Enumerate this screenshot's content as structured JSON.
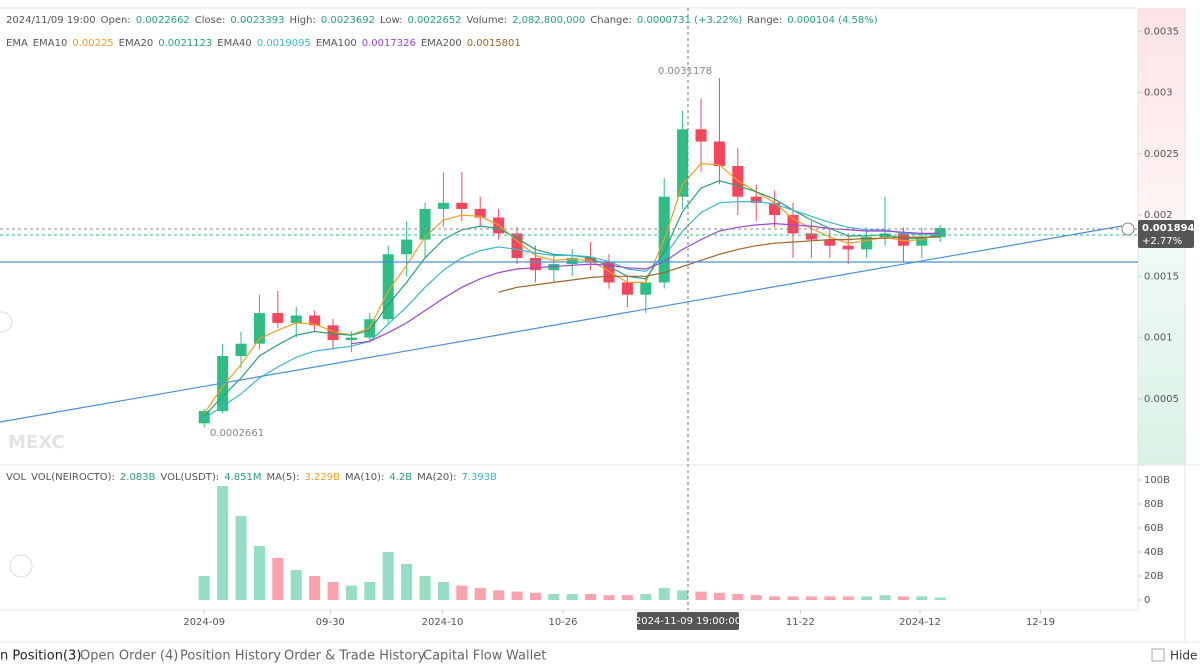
{
  "header": {
    "items": [
      {
        "label": "2024/11/09 19:00",
        "value": null
      },
      {
        "label": "Open:",
        "value": "0.0022662"
      },
      {
        "label": "Close:",
        "value": "0.0023393"
      },
      {
        "label": "High:",
        "value": "0.0023692"
      },
      {
        "label": "Low:",
        "value": "0.0022652"
      },
      {
        "label": "Volume:",
        "value": "2,082,800,000"
      },
      {
        "label": "Change:",
        "value": "0.0000731 (+3.22%)"
      },
      {
        "label": "Range:",
        "value": "0.000104 (4.58%)"
      }
    ],
    "ema_title": "EMA"
  },
  "volume_legend": {
    "title": "VOL",
    "items": [
      {
        "label": "VOL(NEIROCTO):",
        "value": "2.083B",
        "color": "#26a17b"
      },
      {
        "label": "VOL(USDT):",
        "value": "4.851M",
        "color": "#26a17b"
      },
      {
        "label": "MA(5):",
        "value": "3.229B",
        "color": "#f0a020"
      },
      {
        "label": "MA(10):",
        "value": "4.2B",
        "color": "#26a17b"
      },
      {
        "label": "MA(20):",
        "value": "7.393B",
        "color": "#3bb8d0"
      }
    ]
  },
  "chart_data": {
    "type": "candlestick",
    "up_color": "#2ebd85",
    "down_color": "#f6465d",
    "xlim": [
      -11.1,
      50.75
    ],
    "xticks": [
      {
        "value": 0,
        "label": "2024-09"
      },
      {
        "value": 6.85,
        "label": "09-30"
      },
      {
        "value": 12.95,
        "label": "2024-10"
      },
      {
        "value": 19.5,
        "label": "10-26"
      },
      {
        "value": 32.4,
        "label": "11-22"
      },
      {
        "value": 38.9,
        "label": "2024-12"
      },
      {
        "value": 45.45,
        "label": "12-19"
      }
    ],
    "ylim": [
      -4e-05,
      0.00369
    ],
    "yticks": [
      0.0005,
      0.001,
      0.0015,
      0.002,
      0.0025,
      0.003,
      0.0035
    ],
    "candles": {
      "open": [
        0.0003,
        0.0004,
        0.00085,
        0.00095,
        0.0012,
        0.00112,
        0.00118,
        0.0011,
        0.00098,
        0.001,
        0.00115,
        0.00168,
        0.0018,
        0.00205,
        0.0021,
        0.00205,
        0.00198,
        0.00185,
        0.00165,
        0.00155,
        0.0016,
        0.00165,
        0.00162,
        0.00145,
        0.00135,
        0.00145,
        0.00215,
        0.0027,
        0.0026,
        0.0024,
        0.00215,
        0.0021,
        0.002,
        0.00185,
        0.0018,
        0.00175,
        0.00172,
        0.00182,
        0.00185,
        0.00175,
        0.00182
      ],
      "high": [
        0.00042,
        0.00095,
        0.00105,
        0.00135,
        0.00138,
        0.00125,
        0.00122,
        0.00115,
        0.00105,
        0.0012,
        0.00175,
        0.00195,
        0.0021,
        0.00235,
        0.00235,
        0.00215,
        0.00205,
        0.0019,
        0.00175,
        0.00168,
        0.00172,
        0.00178,
        0.00168,
        0.0015,
        0.0015,
        0.0023,
        0.00285,
        0.00295,
        0.0031178,
        0.00255,
        0.00225,
        0.0022,
        0.0021,
        0.00195,
        0.0019,
        0.00185,
        0.0019,
        0.00215,
        0.0019,
        0.0019,
        0.00192
      ],
      "low": [
        0.0002661,
        0.00038,
        0.00075,
        0.0009,
        0.00108,
        0.001,
        0.00105,
        0.0009,
        0.00088,
        0.00096,
        0.00112,
        0.0015,
        0.00165,
        0.0019,
        0.00195,
        0.0019,
        0.0018,
        0.0016,
        0.00145,
        0.00145,
        0.0015,
        0.00155,
        0.0014,
        0.00125,
        0.0012,
        0.0014,
        0.00205,
        0.00235,
        0.00225,
        0.002,
        0.00195,
        0.0019,
        0.00165,
        0.00165,
        0.00165,
        0.0016,
        0.00165,
        0.00175,
        0.00162,
        0.00165,
        0.00178
      ],
      "close": [
        0.0004,
        0.00085,
        0.00095,
        0.0012,
        0.00112,
        0.00118,
        0.0011,
        0.00098,
        0.001,
        0.00115,
        0.00168,
        0.0018,
        0.00205,
        0.0021,
        0.00205,
        0.00198,
        0.00185,
        0.00165,
        0.00155,
        0.0016,
        0.00165,
        0.00162,
        0.00145,
        0.00135,
        0.00145,
        0.00215,
        0.0027,
        0.0026,
        0.0024,
        0.00215,
        0.0021,
        0.002,
        0.00185,
        0.0018,
        0.00175,
        0.00172,
        0.00182,
        0.00185,
        0.00175,
        0.00182,
        0.0018943
      ]
    },
    "series": [
      {
        "name": "EMA10",
        "value_label": "0.00225",
        "color": "#f0a020",
        "values": [
          0.00038,
          0.0006,
          0.00078,
          0.00099,
          0.00106,
          0.00112,
          0.00111,
          0.00105,
          0.00102,
          0.00108,
          0.00138,
          0.00159,
          0.00182,
          0.00196,
          0.002,
          0.00199,
          0.00192,
          0.00179,
          0.00167,
          0.00163,
          0.00164,
          0.00163,
          0.00154,
          0.00145,
          0.00145,
          0.0018,
          0.00225,
          0.00242,
          0.00241,
          0.00228,
          0.00219,
          0.0021,
          0.00197,
          0.00189,
          0.00182,
          0.00177,
          0.00179,
          0.00182,
          0.00179,
          0.0018,
          0.00185
        ]
      },
      {
        "name": "EMA20",
        "value_label": "0.0021123",
        "color": "#26a17b",
        "values": [
          0.00036,
          0.00052,
          0.00067,
          0.00085,
          0.00094,
          0.00102,
          0.00105,
          0.00103,
          0.00102,
          0.00106,
          0.00127,
          0.00145,
          0.00165,
          0.0018,
          0.00188,
          0.00191,
          0.00189,
          0.00181,
          0.00172,
          0.00168,
          0.00167,
          0.00165,
          0.00158,
          0.0015,
          0.00148,
          0.0017,
          0.00203,
          0.00222,
          0.00228,
          0.00224,
          0.00219,
          0.00213,
          0.00204,
          0.00196,
          0.00189,
          0.00183,
          0.00183,
          0.00184,
          0.00181,
          0.00181,
          0.00184
        ]
      },
      {
        "name": "EMA40",
        "value_label": "0.0019095",
        "color": "#3bb8d0",
        "values": [
          0.00034,
          0.00044,
          0.00054,
          0.00067,
          0.00076,
          0.00084,
          0.00089,
          0.00091,
          0.00093,
          0.00097,
          0.00111,
          0.00125,
          0.00141,
          0.00155,
          0.00165,
          0.00171,
          0.00174,
          0.00172,
          0.00169,
          0.00167,
          0.00167,
          0.00166,
          0.00162,
          0.00156,
          0.00154,
          0.00166,
          0.00187,
          0.00202,
          0.0021,
          0.00211,
          0.00211,
          0.00209,
          0.00204,
          0.00199,
          0.00194,
          0.0019,
          0.00188,
          0.00188,
          0.00185,
          0.00184,
          0.00184
        ]
      },
      {
        "name": "EMA100",
        "value_label": "0.0017326",
        "color": "#9c45d6",
        "values": [
          null,
          null,
          null,
          null,
          null,
          null,
          null,
          null,
          0.00095,
          0.00097,
          0.00104,
          0.00112,
          0.00122,
          0.00132,
          0.00141,
          0.00148,
          0.00153,
          0.00156,
          0.00157,
          0.00158,
          0.00159,
          0.0016,
          0.00159,
          0.00157,
          0.00156,
          0.00162,
          0.00172,
          0.0018,
          0.00187,
          0.0019,
          0.00192,
          0.00193,
          0.00192,
          0.00191,
          0.00189,
          0.00188,
          0.00187,
          0.00187,
          0.00186,
          0.00185,
          0.00185
        ]
      },
      {
        "name": "EMA200",
        "value_label": "0.0015801",
        "color": "#a0652a",
        "values": [
          null,
          null,
          null,
          null,
          null,
          null,
          null,
          null,
          null,
          null,
          null,
          null,
          null,
          null,
          null,
          null,
          0.00137,
          0.00141,
          0.00143,
          0.00145,
          0.00147,
          0.00149,
          0.0015,
          0.0015,
          0.0015,
          0.00153,
          0.00158,
          0.00163,
          0.00168,
          0.00172,
          0.00175,
          0.00177,
          0.00178,
          0.00179,
          0.0018,
          0.0018,
          0.00181,
          0.00181,
          0.00182,
          0.00182,
          0.00182
        ]
      }
    ],
    "volume": {
      "values": [
        20000000000,
        95000000000,
        70000000000,
        45000000000,
        35000000000,
        25000000000,
        20000000000,
        15000000000,
        12000000000,
        15000000000,
        40000000000,
        30000000000,
        20000000000,
        15000000000,
        12000000000,
        10000000000,
        8000000000,
        7000000000,
        6000000000,
        5000000000,
        5000000000,
        5000000000,
        4000000000,
        4000000000,
        5000000000,
        10000000000,
        8000000000,
        7000000000,
        6000000000,
        5000000000,
        4000000000,
        3000000000,
        3000000000,
        3000000000,
        3000000000,
        3000000000,
        3000000000,
        4000000000,
        3000000000,
        3000000000,
        2000000000
      ],
      "ylim": [
        -8330000000,
        108330000000
      ],
      "yticks": [
        0,
        {
          "value": 20000000000,
          "label": "20B"
        },
        {
          "value": 40000000000,
          "label": "40B"
        },
        {
          "value": 60000000000,
          "label": "60B"
        },
        {
          "value": 80000000000,
          "label": "80B"
        },
        {
          "value": 100000000000,
          "label": "100B"
        }
      ]
    },
    "annotations": {
      "high_label": "0.0031178",
      "low_label": "0.0002661",
      "last_price": "0.0018943",
      "last_change": "+2.77%",
      "crosshair_time": "2024-11-09 19:00:00",
      "watermark": "MEXC"
    }
  },
  "tabs": [
    "n Position(3)",
    "Open Order (4)",
    "Position History",
    "Order & Trade History",
    "Capital Flow",
    "Wallet"
  ],
  "hide_label": "Hide O"
}
